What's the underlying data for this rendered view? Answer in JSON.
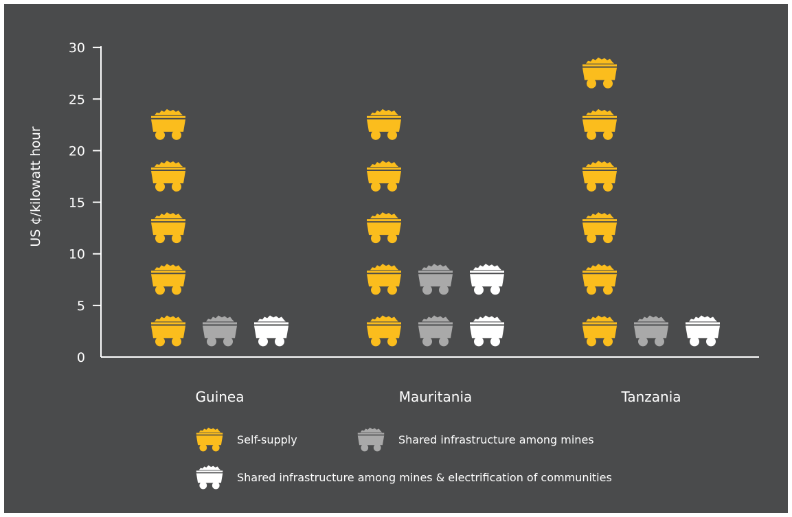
{
  "chart_data": {
    "type": "bar",
    "style": "pictogram",
    "ylabel": "US ¢/kilowatt hour",
    "ylim": [
      0,
      30
    ],
    "yticks": [
      0,
      5,
      10,
      15,
      20,
      25,
      30
    ],
    "unit_per_icon": 5,
    "categories": [
      "Guinea",
      "Mauritania",
      "Tanzania"
    ],
    "series": [
      {
        "name": "Self-supply",
        "color": "#fbbd1d",
        "values": [
          25,
          25,
          30
        ]
      },
      {
        "name": "Shared infrastructure among mines",
        "color": "#a9a9a9",
        "values": [
          5,
          10,
          5
        ]
      },
      {
        "name": "Shared infrastructure among mines & electrification of communities",
        "color": "#ffffff",
        "values": [
          5,
          10,
          5
        ]
      }
    ],
    "icon": "mine-cart-icon",
    "background": "#4a4b4c",
    "legend_position": "bottom"
  }
}
